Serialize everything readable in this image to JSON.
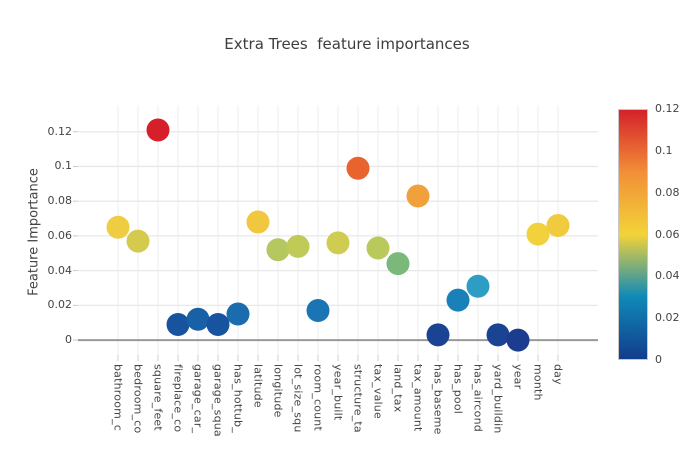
{
  "title": "Extra Trees  feature importances",
  "chart_data": {
    "type": "scatter",
    "title": "Extra Trees  feature importances",
    "xlabel": "",
    "ylabel": "Feature Importance",
    "categories": [
      "bathroom_c",
      "bedroom_co",
      "square_feet",
      "fireplace_co",
      "garage_car_",
      "garage_squa",
      "has_hottub_",
      "latitude",
      "longitude",
      "lot_size_squ",
      "room_count",
      "year_built",
      "structure_ta",
      "tax_value",
      "land_tax",
      "tax_amount",
      "has_baseme",
      "has_pool",
      "has_aircond",
      "yard_buildin",
      "year",
      "month",
      "day"
    ],
    "values": [
      0.065,
      0.057,
      0.121,
      0.009,
      0.012,
      0.009,
      0.015,
      0.068,
      0.052,
      0.054,
      0.017,
      0.056,
      0.099,
      0.053,
      0.044,
      0.083,
      0.003,
      0.023,
      0.031,
      0.003,
      0.0,
      0.061,
      0.066
    ],
    "point_colors": [
      "#efcd43",
      "#d4cb4e",
      "#d62029",
      "#17539f",
      "#1961a7",
      "#17539f",
      "#1a6cae",
      "#f0c73e",
      "#b5c75f",
      "#c0ca57",
      "#1b74b3",
      "#cecc51",
      "#e8632e",
      "#bac95b",
      "#7bb97b",
      "#f1a13c",
      "#1a4394",
      "#1a80b8",
      "#2d9dc3",
      "#1a4394",
      "#1c3d8f",
      "#f2d23c",
      "#f0ca3f"
    ],
    "ytick_labels": [
      "0",
      "0.02",
      "0.04",
      "0.06",
      "0.08",
      "0.1",
      "0.12"
    ],
    "ytick_values": [
      0,
      0.02,
      0.04,
      0.06,
      0.08,
      0.1,
      0.12
    ],
    "ylim": [
      -0.0086,
      0.1354
    ],
    "grid": true,
    "legend_position": "none",
    "marker_size": 23,
    "colorbar": {
      "min": 0,
      "max": 0.12,
      "tick_labels": [
        "0.12",
        "0.1",
        "0.08",
        "0.06",
        "0.04",
        "0.02",
        "0"
      ],
      "tick_values": [
        0.12,
        0.1,
        0.08,
        0.06,
        0.04,
        0.02,
        0
      ],
      "gradient_stops": [
        {
          "pos": 0.0,
          "color": "#d42129"
        },
        {
          "pos": 0.25,
          "color": "#f28f38"
        },
        {
          "pos": 0.5,
          "color": "#f2d338"
        },
        {
          "pos": 0.75,
          "color": "#0f8ab8"
        },
        {
          "pos": 1.0,
          "color": "#123c8c"
        }
      ]
    },
    "colors": {
      "gridline": "#ececec",
      "hgridline": "#e8e8e8",
      "zeroline": "#999999",
      "tick": "#cccccc",
      "text": "#444444",
      "title_text": "#3d3d3d",
      "background": "#ffffff"
    }
  }
}
